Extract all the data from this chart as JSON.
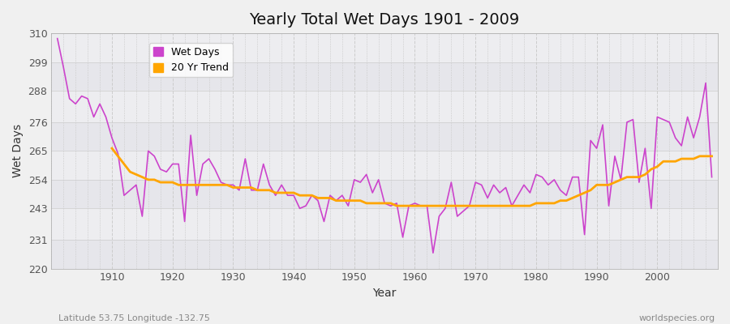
{
  "title": "Yearly Total Wet Days 1901 - 2009",
  "xlabel": "Year",
  "ylabel": "Wet Days",
  "ylim": [
    220,
    310
  ],
  "yticks": [
    220,
    231,
    243,
    254,
    265,
    276,
    288,
    299,
    310
  ],
  "figsize": [
    9.0,
    4.0
  ],
  "bg_color": "#f0f0f0",
  "plot_bg_color": "#f0f0f0",
  "wet_days_color": "#cc44cc",
  "trend_color": "#ffa500",
  "legend_labels": [
    "Wet Days",
    "20 Yr Trend"
  ],
  "subtitle_left": "Latitude 53.75 Longitude -132.75",
  "subtitle_right": "worldspecies.org",
  "years": [
    1901,
    1902,
    1903,
    1904,
    1905,
    1906,
    1907,
    1908,
    1909,
    1910,
    1911,
    1912,
    1913,
    1914,
    1915,
    1916,
    1917,
    1918,
    1919,
    1920,
    1921,
    1922,
    1923,
    1924,
    1925,
    1926,
    1927,
    1928,
    1929,
    1930,
    1931,
    1932,
    1933,
    1934,
    1935,
    1936,
    1937,
    1938,
    1939,
    1940,
    1941,
    1942,
    1943,
    1944,
    1945,
    1946,
    1947,
    1948,
    1949,
    1950,
    1951,
    1952,
    1953,
    1954,
    1955,
    1956,
    1957,
    1958,
    1959,
    1960,
    1961,
    1962,
    1963,
    1964,
    1965,
    1966,
    1967,
    1968,
    1969,
    1970,
    1971,
    1972,
    1973,
    1974,
    1975,
    1976,
    1977,
    1978,
    1979,
    1980,
    1981,
    1982,
    1983,
    1984,
    1985,
    1986,
    1987,
    1988,
    1989,
    1990,
    1991,
    1992,
    1993,
    1994,
    1995,
    1996,
    1997,
    1998,
    1999,
    2000,
    2001,
    2002,
    2003,
    2004,
    2005,
    2006,
    2007,
    2008,
    2009
  ],
  "wet_days": [
    308,
    297,
    285,
    283,
    286,
    285,
    278,
    283,
    278,
    270,
    264,
    248,
    250,
    252,
    240,
    265,
    263,
    258,
    257,
    260,
    260,
    238,
    271,
    248,
    260,
    262,
    258,
    253,
    252,
    252,
    250,
    262,
    250,
    250,
    260,
    252,
    248,
    252,
    248,
    248,
    243,
    244,
    248,
    246,
    238,
    248,
    246,
    248,
    244,
    254,
    253,
    256,
    249,
    254,
    245,
    244,
    245,
    232,
    244,
    245,
    244,
    244,
    226,
    240,
    243,
    253,
    240,
    242,
    244,
    253,
    252,
    247,
    252,
    249,
    251,
    244,
    248,
    252,
    249,
    256,
    255,
    252,
    254,
    250,
    248,
    255,
    255,
    233,
    269,
    266,
    275,
    244,
    263,
    254,
    276,
    277,
    253,
    266,
    243,
    278,
    277,
    276,
    270,
    267,
    278,
    270,
    278,
    291,
    255
  ],
  "trend_years": [
    1910,
    1911,
    1912,
    1913,
    1914,
    1915,
    1916,
    1917,
    1918,
    1919,
    1920,
    1921,
    1922,
    1923,
    1924,
    1925,
    1926,
    1927,
    1928,
    1929,
    1930,
    1931,
    1932,
    1933,
    1934,
    1935,
    1936,
    1937,
    1938,
    1939,
    1940,
    1941,
    1942,
    1943,
    1944,
    1945,
    1946,
    1947,
    1948,
    1949,
    1950,
    1951,
    1952,
    1953,
    1954,
    1955,
    1956,
    1957,
    1958,
    1959,
    1960,
    1961,
    1962,
    1963,
    1964,
    1965,
    1966,
    1967,
    1968,
    1969,
    1970,
    1971,
    1972,
    1973,
    1974,
    1975,
    1976,
    1977,
    1978,
    1979,
    1980,
    1981,
    1982,
    1983,
    1984,
    1985,
    1986,
    1987,
    1988,
    1989,
    1990,
    1991,
    1992,
    1993,
    1994,
    1995,
    1996,
    1997,
    1998,
    1999,
    2000,
    2001,
    2002,
    2003,
    2004,
    2005,
    2006,
    2007,
    2008,
    2009
  ],
  "trend": [
    266,
    263,
    260,
    257,
    256,
    255,
    254,
    254,
    253,
    253,
    253,
    252,
    252,
    252,
    252,
    252,
    252,
    252,
    252,
    252,
    251,
    251,
    251,
    251,
    250,
    250,
    250,
    249,
    249,
    249,
    249,
    248,
    248,
    248,
    247,
    247,
    247,
    246,
    246,
    246,
    246,
    246,
    245,
    245,
    245,
    245,
    245,
    244,
    244,
    244,
    244,
    244,
    244,
    244,
    244,
    244,
    244,
    244,
    244,
    244,
    244,
    244,
    244,
    244,
    244,
    244,
    244,
    244,
    244,
    244,
    245,
    245,
    245,
    245,
    246,
    246,
    247,
    248,
    249,
    250,
    252,
    252,
    252,
    253,
    254,
    255,
    255,
    255,
    256,
    258,
    259,
    261,
    261,
    261,
    262,
    262,
    262,
    263,
    263,
    263
  ]
}
